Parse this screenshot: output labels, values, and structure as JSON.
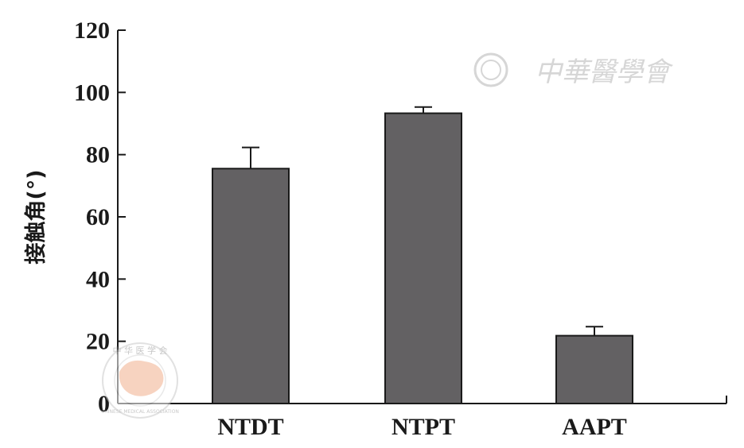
{
  "chart_data": {
    "type": "bar",
    "categories": [
      "NTDT",
      "NTPT",
      "AAPT"
    ],
    "values": [
      75.5,
      93.3,
      21.8
    ],
    "errors": [
      6.8,
      2.0,
      2.9
    ],
    "ylabel": "接触角(°)",
    "xlabel": "",
    "ylim": [
      0,
      120
    ],
    "yticks": [
      0,
      20,
      40,
      60,
      80,
      100,
      120
    ],
    "grid": false,
    "colors": {
      "bar": "#636163",
      "axis": "#1a1a1a",
      "error": "#1a1a1a"
    }
  },
  "watermarks": {
    "top_right_text": "中華醫學會",
    "seal_text": "中 华 医 学 会",
    "seal_subtext": "CHINESE MEDICAL ASSOCIATION"
  }
}
